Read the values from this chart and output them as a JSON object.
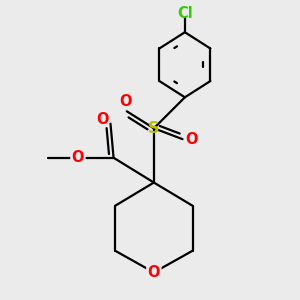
{
  "background_color": "#ebebeb",
  "bond_color": "#000000",
  "bond_width": 1.6,
  "atom_colors": {
    "O": "#ff0000",
    "S": "#bbbb00",
    "Cl": "#33cc00",
    "C": "#000000"
  },
  "font_size_atom": 10.5,
  "fig_size": [
    3.0,
    3.0
  ],
  "dpi": 100
}
